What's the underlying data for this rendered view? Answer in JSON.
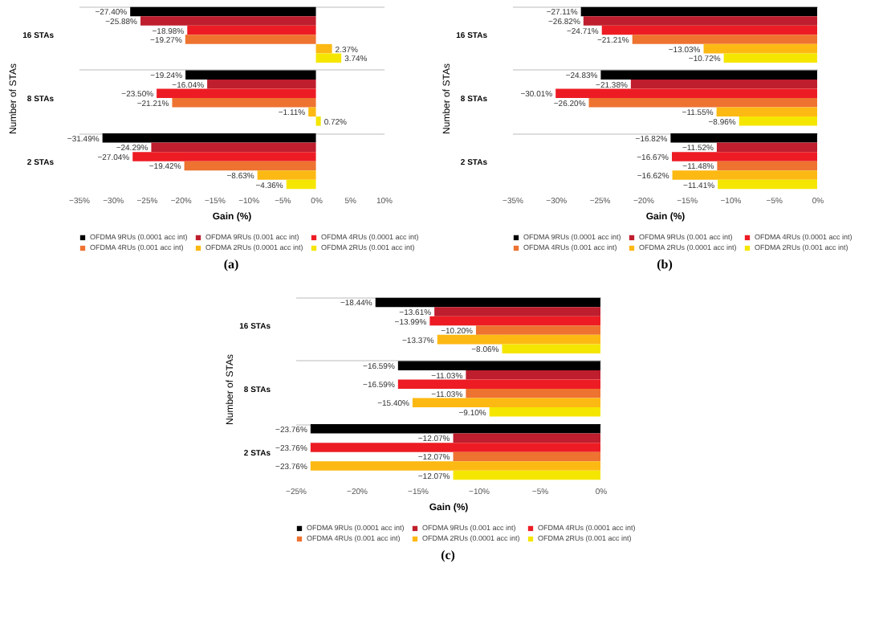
{
  "chart_data": [
    {
      "type": "bar",
      "orientation": "horizontal",
      "xlabel": "Gain (%)",
      "ylabel": "Number of STAs",
      "categories": [
        "16 STAs",
        "8 STAs",
        "2 STAs"
      ],
      "grid": "y",
      "legend": "bottom",
      "annotations": [
        "(a)"
      ],
      "xlim": [
        -35,
        10
      ],
      "xticks": [
        {
          "value": -35,
          "label": "−35%"
        },
        {
          "value": -30,
          "label": "−30%"
        },
        {
          "value": -25,
          "label": "−25%"
        },
        {
          "value": -20,
          "label": "−20%"
        },
        {
          "value": -15,
          "label": "−15%"
        },
        {
          "value": -10,
          "label": "−10%"
        },
        {
          "value": -5,
          "label": "−5%"
        },
        {
          "value": 0,
          "label": "0%"
        },
        {
          "value": 5,
          "label": "5%"
        },
        {
          "value": 10,
          "label": "10%"
        }
      ],
      "series": [
        {
          "name": "OFDMA 9RUs (0.0001 acc int)",
          "color": "#000000",
          "values": [
            -27.4,
            -19.24,
            -31.49
          ],
          "value_labels": [
            "−27.40%",
            "−19.24%",
            "−31.49%"
          ]
        },
        {
          "name": "OFDMA 9RUs (0.001 acc int)",
          "color": "#be1e2d",
          "values": [
            -25.88,
            -16.04,
            -24.29
          ],
          "value_labels": [
            "−25.88%",
            "−16.04%",
            "−24.29%"
          ]
        },
        {
          "name": "OFDMA 4RUs (0.0001 acc int)",
          "color": "#ed1c24",
          "values": [
            -18.98,
            -23.5,
            -27.04
          ],
          "value_labels": [
            "−18.98%",
            "−23.50%",
            "−27.04%"
          ]
        },
        {
          "name": "OFDMA 4RUs (0.001 acc int)",
          "color": "#ee7230",
          "values": [
            -19.27,
            -21.21,
            -19.42
          ],
          "value_labels": [
            "−19.27%",
            "−21.21%",
            "−19.42%"
          ]
        },
        {
          "name": "OFDMA 2RUs (0.0001 acc int)",
          "color": "#fdb913",
          "values": [
            2.37,
            -1.11,
            -8.63
          ],
          "value_labels": [
            "2.37%",
            "−1.11%",
            "−8.63%"
          ]
        },
        {
          "name": "OFDMA 2RUs (0.001 acc int)",
          "color": "#f5e600",
          "values": [
            3.74,
            0.72,
            -4.36
          ],
          "value_labels": [
            "3.74%",
            "0.72%",
            "−4.36%"
          ]
        }
      ]
    },
    {
      "type": "bar",
      "orientation": "horizontal",
      "xlabel": "Gain (%)",
      "ylabel": "Number of STAs",
      "categories": [
        "16 STAs",
        "8 STAs",
        "2 STAs"
      ],
      "grid": "y",
      "legend": "bottom",
      "annotations": [
        "(b)"
      ],
      "xlim": [
        -35,
        0
      ],
      "xticks": [
        {
          "value": -35,
          "label": "−35%"
        },
        {
          "value": -30,
          "label": "−30%"
        },
        {
          "value": -25,
          "label": "−25%"
        },
        {
          "value": -20,
          "label": "−20%"
        },
        {
          "value": -15,
          "label": "−15%"
        },
        {
          "value": -10,
          "label": "−10%"
        },
        {
          "value": -5,
          "label": "−5%"
        },
        {
          "value": 0,
          "label": "0%"
        }
      ],
      "series": [
        {
          "name": "OFDMA 9RUs (0.0001 acc int)",
          "color": "#000000",
          "values": [
            -27.11,
            -24.83,
            -16.82
          ],
          "value_labels": [
            "−27.11%",
            "−24.83%",
            "−16.82%"
          ]
        },
        {
          "name": "OFDMA 9RUs (0.001 acc int)",
          "color": "#be1e2d",
          "values": [
            -26.82,
            -21.38,
            -11.52
          ],
          "value_labels": [
            "−26.82%",
            "−21.38%",
            "−11.52%"
          ]
        },
        {
          "name": "OFDMA 4RUs (0.0001 acc int)",
          "color": "#ed1c24",
          "values": [
            -24.71,
            -30.01,
            -16.67
          ],
          "value_labels": [
            "−24.71%",
            "−30.01%",
            "−16.67%"
          ]
        },
        {
          "name": "OFDMA 4RUs (0.001 acc int)",
          "color": "#ee7230",
          "values": [
            -21.21,
            -26.2,
            -11.48
          ],
          "value_labels": [
            "−21.21%",
            "−26.20%",
            "−11.48%"
          ]
        },
        {
          "name": "OFDMA 2RUs (0.0001 acc int)",
          "color": "#fdb913",
          "values": [
            -13.03,
            -11.55,
            -16.62
          ],
          "value_labels": [
            "−13.03%",
            "−11.55%",
            "−16.62%"
          ]
        },
        {
          "name": "OFDMA 2RUs (0.001 acc int)",
          "color": "#f5e600",
          "values": [
            -10.72,
            -8.96,
            -11.41
          ],
          "value_labels": [
            "−10.72%",
            "−8.96%",
            "−11.41%"
          ]
        }
      ]
    },
    {
      "type": "bar",
      "orientation": "horizontal",
      "xlabel": "Gain (%)",
      "ylabel": "Number of STAs",
      "categories": [
        "16 STAs",
        "8 STAs",
        "2 STAs"
      ],
      "grid": "y",
      "legend": "bottom",
      "annotations": [
        "(c)"
      ],
      "xlim": [
        -25,
        0
      ],
      "xticks": [
        {
          "value": -25,
          "label": "−25%"
        },
        {
          "value": -20,
          "label": "−20%"
        },
        {
          "value": -15,
          "label": "−15%"
        },
        {
          "value": -10,
          "label": "−10%"
        },
        {
          "value": -5,
          "label": "−5%"
        },
        {
          "value": 0,
          "label": "0%"
        }
      ],
      "series": [
        {
          "name": "OFDMA 9RUs (0.0001 acc int)",
          "color": "#000000",
          "values": [
            -18.44,
            -16.59,
            -23.76
          ],
          "value_labels": [
            "−18.44%",
            "−16.59%",
            "−23.76%"
          ]
        },
        {
          "name": "OFDMA 9RUs (0.001 acc int)",
          "color": "#be1e2d",
          "values": [
            -13.61,
            -11.03,
            -12.07
          ],
          "value_labels": [
            "−13.61%",
            "−11.03%",
            "−12.07%"
          ]
        },
        {
          "name": "OFDMA 4RUs (0.0001 acc int)",
          "color": "#ed1c24",
          "values": [
            -13.99,
            -16.59,
            -23.76
          ],
          "value_labels": [
            "−13.99%",
            "−16.59%",
            "−23.76%"
          ]
        },
        {
          "name": "OFDMA 4RUs (0.001 acc int)",
          "color": "#ee7230",
          "values": [
            -10.2,
            -11.03,
            -12.07
          ],
          "value_labels": [
            "−10.20%",
            "−11.03%",
            "−12.07%"
          ]
        },
        {
          "name": "OFDMA 2RUs (0.0001 acc int)",
          "color": "#fdb913",
          "values": [
            -13.37,
            -15.4,
            -23.76
          ],
          "value_labels": [
            "−13.37%",
            "−15.40%",
            "−23.76%"
          ]
        },
        {
          "name": "OFDMA 2RUs (0.001 acc int)",
          "color": "#f5e600",
          "values": [
            -8.06,
            -9.1,
            -12.07
          ],
          "value_labels": [
            "−8.06%",
            "−9.10%",
            "−12.07%"
          ]
        }
      ]
    }
  ]
}
